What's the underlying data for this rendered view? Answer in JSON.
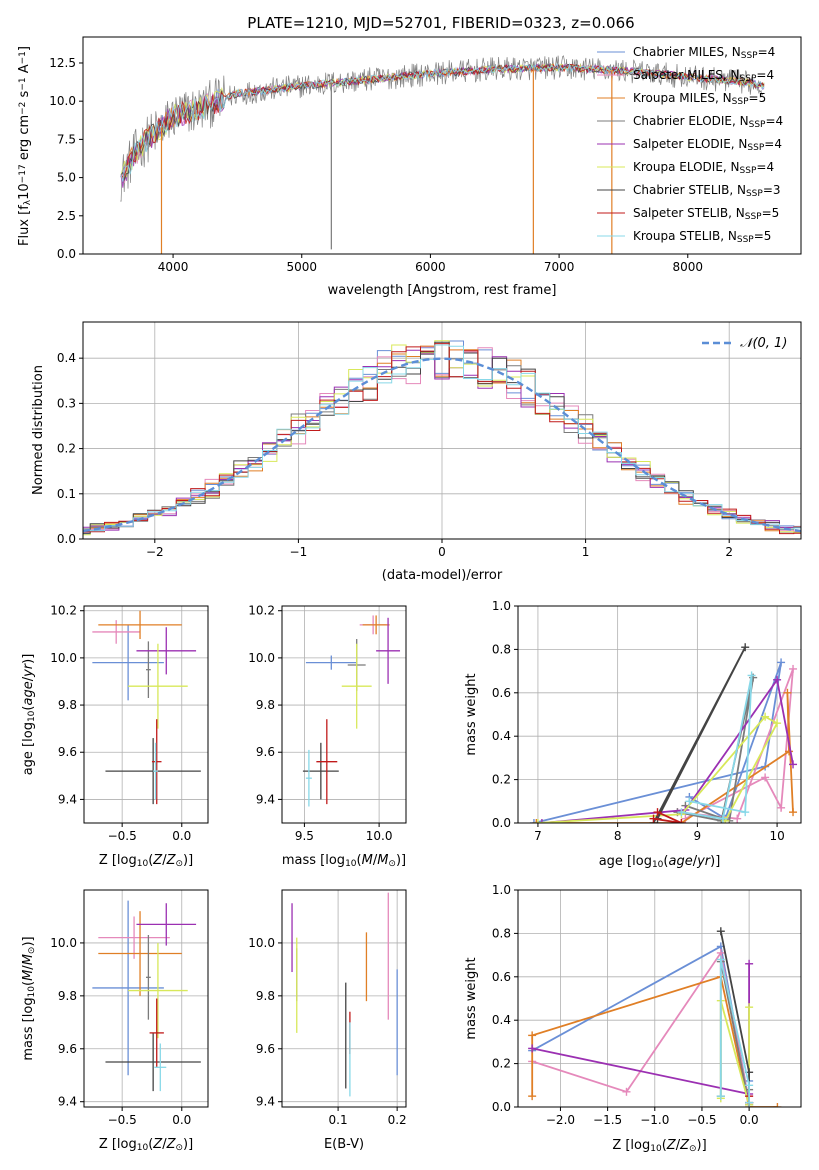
{
  "figure_title": "PLATE=1210, MJD=52701, FIBERID=0323, z=0.066",
  "colors": {
    "Chabrier MILES": "#6a8fd6",
    "Salpeter MILES": "#e589bb",
    "Kroupa MILES": "#e07f26",
    "Chabrier ELODIE": "#7b7b7b",
    "Salpeter ELODIE": "#9b30b2",
    "Kroupa ELODIE": "#d8e85a",
    "Chabrier STELIB": "#444444",
    "Salpeter STELIB": "#c01a1a",
    "Kroupa STELIB": "#88d8e8",
    "normal_curve": "#5b8ed6"
  },
  "chart_data": [
    {
      "id": "spectrum",
      "type": "line",
      "title": "",
      "xlabel": "wavelength [Angstrom, rest frame]",
      "ylabel_parts": [
        "Flux [f",
        "λ",
        "10",
        "−17",
        " erg cm",
        "−2",
        " s",
        "−1",
        " A",
        "−1",
        "]"
      ],
      "xlim": [
        3300,
        8880
      ],
      "ylim": [
        0,
        14.2
      ],
      "xticks": [
        4000,
        5000,
        6000,
        7000,
        8000
      ],
      "yticks": [
        0.0,
        2.5,
        5.0,
        7.5,
        10.0,
        12.5
      ],
      "ytick_labels": [
        "0.0",
        "2.5",
        "5.0",
        "7.5",
        "10.0",
        "12.5"
      ],
      "grid": false,
      "legend_position": "right",
      "legend": [
        {
          "name": "Chabrier MILES",
          "nssp": "4",
          "color_key": "Chabrier MILES"
        },
        {
          "name": "Salpeter MILES",
          "nssp": "4",
          "color_key": "Salpeter MILES"
        },
        {
          "name": "Kroupa MILES",
          "nssp": "5",
          "color_key": "Kroupa MILES"
        },
        {
          "name": "Chabrier ELODIE",
          "nssp": "4",
          "color_key": "Chabrier ELODIE"
        },
        {
          "name": "Salpeter ELODIE",
          "nssp": "4",
          "color_key": "Salpeter ELODIE"
        },
        {
          "name": "Kroupa ELODIE",
          "nssp": "4",
          "color_key": "Kroupa ELODIE"
        },
        {
          "name": "Chabrier STELIB",
          "nssp": "3",
          "color_key": "Chabrier STELIB"
        },
        {
          "name": "Salpeter STELIB",
          "nssp": "5",
          "color_key": "Salpeter STELIB"
        },
        {
          "name": "Kroupa STELIB",
          "nssp": "5",
          "color_key": "Kroupa STELIB"
        }
      ],
      "data_trend": {
        "x": [
          3600,
          3700,
          3800,
          3900,
          4000,
          4200,
          4500,
          5000,
          5500,
          6000,
          6500,
          7000,
          7500,
          8000,
          8500,
          8600
        ],
        "y": [
          5.0,
          6.5,
          7.5,
          8.2,
          9.0,
          9.5,
          10.5,
          11.0,
          11.4,
          11.8,
          12.1,
          12.2,
          12.0,
          11.6,
          11.2,
          11.0
        ]
      },
      "dips": [
        {
          "series": "Kroupa MILES",
          "x": 3910,
          "y": 0
        },
        {
          "series": "Kroupa MILES",
          "x": 6800,
          "y": 0
        },
        {
          "series": "Kroupa MILES",
          "x": 7410,
          "y": 0
        },
        {
          "series": "Chabrier ELODIE",
          "x": 5230,
          "y": 0.3
        }
      ]
    },
    {
      "id": "residuals",
      "type": "step",
      "title": "",
      "xlabel": "(data-model)/error",
      "ylabel": "Normed distribution",
      "xlim": [
        -2.5,
        2.5
      ],
      "ylim": [
        0,
        0.48
      ],
      "xticks": [
        -2,
        -1,
        0,
        1,
        2
      ],
      "xtick_labels": [
        "−2",
        "−1",
        "0",
        "1",
        "2"
      ],
      "yticks": [
        0.0,
        0.1,
        0.2,
        0.3,
        0.4
      ],
      "ytick_labels": [
        "0.0",
        "0.1",
        "0.2",
        "0.3",
        "0.4"
      ],
      "grid": true,
      "legend_position": "top-right",
      "legend_label": "𝒩(0, 1)",
      "bin_width": 0.1,
      "series_peak": 0.4
    },
    {
      "id": "age_vs_Z",
      "type": "errorbar",
      "xlabel": "Z [log10(Z/Z⊙)]",
      "ylabel": "age  [log10(age/yr)]",
      "xlim": [
        -0.82,
        0.22
      ],
      "ylim": [
        9.3,
        10.22
      ],
      "xticks": [
        -0.5,
        0.0
      ],
      "xtick_labels": [
        "−0.5",
        "0.0"
      ],
      "yticks": [
        9.4,
        9.6,
        9.8,
        10.0,
        10.2
      ],
      "ytick_labels": [
        "9.4",
        "9.6",
        "9.8",
        "10.0",
        "10.2"
      ],
      "grid": true,
      "points": [
        {
          "series": "Chabrier MILES",
          "x": -0.45,
          "xerr": 0.3,
          "y": 9.98,
          "yerr": 0.16
        },
        {
          "series": "Salpeter MILES",
          "x": -0.55,
          "xerr": 0.2,
          "y": 10.11,
          "yerr": 0.05
        },
        {
          "series": "Kroupa MILES",
          "x": -0.35,
          "xerr": 0.35,
          "y": 10.14,
          "yerr": 0.06
        },
        {
          "series": "Chabrier ELODIE",
          "x": -0.28,
          "xerr": 0.02,
          "y": 9.95,
          "yerr": 0.12
        },
        {
          "series": "Salpeter ELODIE",
          "x": -0.13,
          "xerr": 0.25,
          "y": 10.03,
          "yerr": 0.1
        },
        {
          "series": "Kroupa ELODIE",
          "x": -0.2,
          "xerr": 0.25,
          "y": 9.88,
          "yerr": 0.18
        },
        {
          "series": "Chabrier STELIB",
          "x": -0.24,
          "xerr": 0.4,
          "y": 9.52,
          "yerr": 0.14
        },
        {
          "series": "Salpeter STELIB",
          "x": -0.21,
          "xerr": 0.04,
          "y": 9.56,
          "yerr": 0.18
        },
        {
          "series": "Kroupa STELIB",
          "x": -0.22,
          "xerr": 0.02,
          "y": 9.52,
          "yerr": 0.12
        }
      ]
    },
    {
      "id": "age_vs_mass",
      "type": "errorbar",
      "xlabel": "mass [log10(M/M⊙)]",
      "ylabel": "",
      "xlim": [
        9.35,
        10.18
      ],
      "ylim": [
        9.3,
        10.22
      ],
      "xticks": [
        9.5,
        10.0
      ],
      "xtick_labels": [
        "9.5",
        "10.0"
      ],
      "yticks": [
        9.4,
        9.6,
        9.8,
        10.0,
        10.2
      ],
      "ytick_labels": [
        "9.4",
        "9.6",
        "9.8",
        "10.0",
        "10.2"
      ],
      "grid": true,
      "points": [
        {
          "series": "Chabrier MILES",
          "x": 9.68,
          "xerr": 0.17,
          "y": 9.98,
          "yerr": 0.03
        },
        {
          "series": "Salpeter MILES",
          "x": 9.96,
          "xerr": 0.09,
          "y": 10.14,
          "yerr": 0.04
        },
        {
          "series": "Kroupa MILES",
          "x": 9.98,
          "xerr": 0.09,
          "y": 10.14,
          "yerr": 0.04
        },
        {
          "series": "Chabrier ELODIE",
          "x": 9.85,
          "xerr": 0.06,
          "y": 9.97,
          "yerr": 0.11
        },
        {
          "series": "Salpeter ELODIE",
          "x": 10.06,
          "xerr": 0.08,
          "y": 10.03,
          "yerr": 0.14
        },
        {
          "series": "Kroupa ELODIE",
          "x": 9.85,
          "xerr": 0.1,
          "y": 9.88,
          "yerr": 0.18
        },
        {
          "series": "Chabrier STELIB",
          "x": 9.61,
          "xerr": 0.12,
          "y": 9.52,
          "yerr": 0.12
        },
        {
          "series": "Salpeter STELIB",
          "x": 9.65,
          "xerr": 0.07,
          "y": 9.56,
          "yerr": 0.18
        },
        {
          "series": "Kroupa STELIB",
          "x": 9.53,
          "xerr": 0.02,
          "y": 9.49,
          "yerr": 0.12
        }
      ]
    },
    {
      "id": "mass_weight_vs_age",
      "type": "line",
      "xlabel": "age  [log10(age/yr)]",
      "ylabel": "mass weight",
      "xlim": [
        6.75,
        10.3
      ],
      "ylim": [
        0,
        1.0
      ],
      "xticks": [
        7,
        8,
        9,
        10
      ],
      "xtick_labels": [
        "7",
        "8",
        "9",
        "10"
      ],
      "yticks": [
        0.0,
        0.2,
        0.4,
        0.6,
        0.8,
        1.0
      ],
      "ytick_labels": [
        "0.0",
        "0.2",
        "0.4",
        "0.6",
        "0.8",
        "1.0"
      ],
      "grid": true,
      "series": [
        {
          "name": "Chabrier MILES",
          "x": [
            6.95,
            9.85,
            10.05,
            9.35,
            8.9
          ],
          "y": [
            0.0,
            0.26,
            0.74,
            0.02,
            0.12
          ]
        },
        {
          "name": "Salpeter MILES",
          "x": [
            8.85,
            9.85,
            10.05,
            10.2,
            9.5,
            8.75
          ],
          "y": [
            0.02,
            0.21,
            0.07,
            0.71,
            0.02,
            0.05
          ]
        },
        {
          "name": "Kroupa MILES",
          "x": [
            6.98,
            8.8,
            10.15,
            10.13,
            10.2
          ],
          "y": [
            0.0,
            0.0,
            0.33,
            0.6,
            0.05
          ]
        },
        {
          "name": "Chabrier ELODIE",
          "x": [
            8.75,
            9.3,
            9.7,
            9.4,
            8.85
          ],
          "y": [
            0.05,
            0.01,
            0.67,
            0.01,
            0.08
          ]
        },
        {
          "name": "Salpeter ELODIE",
          "x": [
            7.05,
            8.85,
            10.0,
            10.2
          ],
          "y": [
            0.0,
            0.06,
            0.66,
            0.27
          ]
        },
        {
          "name": "Kroupa ELODIE",
          "x": [
            7.0,
            8.8,
            9.85,
            10.0,
            9.35
          ],
          "y": [
            0.0,
            0.04,
            0.49,
            0.46,
            0.01
          ]
        },
        {
          "name": "Chabrier STELIB",
          "x": [
            8.45,
            9.6,
            8.5
          ],
          "y": [
            0.0,
            0.81,
            0.02
          ]
        },
        {
          "name": "Salpeter STELIB",
          "x": [
            8.45,
            8.8,
            8.5
          ],
          "y": [
            0.02,
            0.0,
            0.05
          ]
        },
        {
          "name": "Kroupa STELIB",
          "x": [
            8.8,
            9.32,
            9.68,
            9.6,
            8.9
          ],
          "y": [
            0.05,
            0.02,
            0.68,
            0.05,
            0.1
          ]
        }
      ]
    },
    {
      "id": "mass_vs_Z",
      "type": "errorbar",
      "xlabel": "Z [log10(Z/Z⊙)]",
      "ylabel": "mass [log10(M/M⊙)]",
      "xlim": [
        -0.82,
        0.22
      ],
      "ylim": [
        9.38,
        10.2
      ],
      "xticks": [
        -0.5,
        0.0
      ],
      "xtick_labels": [
        "−0.5",
        "0.0"
      ],
      "yticks": [
        9.4,
        9.6,
        9.8,
        10.0
      ],
      "ytick_labels": [
        "9.4",
        "9.6",
        "9.8",
        "10.0"
      ],
      "grid": true,
      "points": [
        {
          "series": "Chabrier MILES",
          "x": -0.45,
          "xerr": 0.3,
          "y": 9.83,
          "yerr": 0.33
        },
        {
          "series": "Salpeter MILES",
          "x": -0.4,
          "xerr": 0.3,
          "y": 10.02,
          "yerr": 0.08
        },
        {
          "series": "Kroupa MILES",
          "x": -0.35,
          "xerr": 0.35,
          "y": 9.96,
          "yerr": 0.16
        },
        {
          "series": "Chabrier ELODIE",
          "x": -0.28,
          "xerr": 0.02,
          "y": 9.87,
          "yerr": 0.16
        },
        {
          "series": "Salpeter ELODIE",
          "x": -0.13,
          "xerr": 0.25,
          "y": 10.07,
          "yerr": 0.08
        },
        {
          "series": "Kroupa ELODIE",
          "x": -0.2,
          "xerr": 0.25,
          "y": 9.82,
          "yerr": 0.18
        },
        {
          "series": "Chabrier STELIB",
          "x": -0.24,
          "xerr": 0.4,
          "y": 9.55,
          "yerr": 0.11
        },
        {
          "series": "Salpeter STELIB",
          "x": -0.21,
          "xerr": 0.06,
          "y": 9.66,
          "yerr": 0.13
        },
        {
          "series": "Kroupa STELIB",
          "x": -0.18,
          "xerr": 0.05,
          "y": 9.53,
          "yerr": 0.09
        }
      ]
    },
    {
      "id": "mass_vs_ebv",
      "type": "errorbar",
      "xlabel": "E(B-V)",
      "ylabel": "",
      "xlim": [
        0.005,
        0.215
      ],
      "ylim": [
        9.38,
        10.2
      ],
      "xticks": [
        0.1,
        0.2
      ],
      "xtick_labels": [
        "0.1",
        "0.2"
      ],
      "yticks": [
        9.4,
        9.6,
        9.8,
        10.0
      ],
      "ytick_labels": [
        "9.4",
        "9.6",
        "9.8",
        "10.0"
      ],
      "grid": true,
      "points": [
        {
          "series": "Chabrier MILES",
          "x": 0.2,
          "xerr": 0.0,
          "y": 9.7,
          "yerr": 0.2
        },
        {
          "series": "Salpeter MILES",
          "x": 0.185,
          "xerr": 0.0,
          "y": 9.95,
          "yerr": 0.24
        },
        {
          "series": "Kroupa MILES",
          "x": 0.148,
          "xerr": 0.0,
          "y": 9.91,
          "yerr": 0.13
        },
        {
          "series": "Chabrier ELODIE",
          "x": 0.03,
          "xerr": 0.0,
          "y": 9.88,
          "yerr": 0.1
        },
        {
          "series": "Salpeter ELODIE",
          "x": 0.022,
          "xerr": 0.0,
          "y": 10.02,
          "yerr": 0.13
        },
        {
          "series": "Kroupa ELODIE",
          "x": 0.03,
          "xerr": 0.0,
          "y": 9.84,
          "yerr": 0.18
        },
        {
          "series": "Chabrier STELIB",
          "x": 0.113,
          "xerr": 0.0,
          "y": 9.65,
          "yerr": 0.2
        },
        {
          "series": "Salpeter STELIB",
          "x": 0.12,
          "xerr": 0.0,
          "y": 9.66,
          "yerr": 0.08
        },
        {
          "series": "Kroupa STELIB",
          "x": 0.12,
          "xerr": 0.0,
          "y": 9.56,
          "yerr": 0.14
        }
      ]
    },
    {
      "id": "mass_weight_vs_Z",
      "type": "line",
      "xlabel": "Z [log10(Z/Z⊙)]",
      "ylabel": "mass weight",
      "xlim": [
        -2.45,
        0.55
      ],
      "ylim": [
        0,
        1.0
      ],
      "xticks": [
        -2.0,
        -1.5,
        -1.0,
        -0.5,
        0.0
      ],
      "xtick_labels": [
        "−2.0",
        "−1.5",
        "−1.0",
        "−0.5",
        "0.0"
      ],
      "yticks": [
        0.0,
        0.2,
        0.4,
        0.6,
        0.8,
        1.0
      ],
      "ytick_labels": [
        "0.0",
        "0.2",
        "0.4",
        "0.6",
        "0.8",
        "1.0"
      ],
      "grid": true,
      "series": [
        {
          "name": "Chabrier MILES",
          "x": [
            -2.3,
            -0.3,
            0.0,
            0.0
          ],
          "y": [
            0.26,
            0.74,
            0.02,
            0.12
          ]
        },
        {
          "name": "Salpeter MILES",
          "x": [
            -2.3,
            -1.3,
            -0.3,
            0.0,
            0.0
          ],
          "y": [
            0.21,
            0.07,
            0.71,
            0.02,
            0.05
          ]
        },
        {
          "name": "Kroupa MILES",
          "x": [
            -2.3,
            -2.3,
            -0.3,
            0.0,
            0.3
          ],
          "y": [
            0.05,
            0.33,
            0.6,
            0.0,
            0.0
          ]
        },
        {
          "name": "Chabrier ELODIE",
          "x": [
            -0.3,
            -0.3,
            0.0,
            0.0
          ],
          "y": [
            0.05,
            0.67,
            0.01,
            0.08
          ]
        },
        {
          "name": "Salpeter ELODIE",
          "x": [
            -2.3,
            0.0,
            0.0
          ],
          "y": [
            0.27,
            0.06,
            0.66
          ]
        },
        {
          "name": "Kroupa ELODIE",
          "x": [
            -0.3,
            -0.3,
            0.0,
            0.0
          ],
          "y": [
            0.04,
            0.49,
            0.01,
            0.46
          ]
        },
        {
          "name": "Chabrier STELIB",
          "x": [
            -0.3,
            0.0,
            0.0
          ],
          "y": [
            0.81,
            0.16,
            0.02
          ]
        },
        {
          "name": "Salpeter STELIB",
          "x": [
            0.0,
            0.0
          ],
          "y": [
            0.02,
            0.05
          ]
        },
        {
          "name": "Kroupa STELIB",
          "x": [
            -0.3,
            -0.3,
            0.0,
            0.0
          ],
          "y": [
            0.05,
            0.68,
            0.1,
            0.02
          ]
        }
      ]
    }
  ]
}
